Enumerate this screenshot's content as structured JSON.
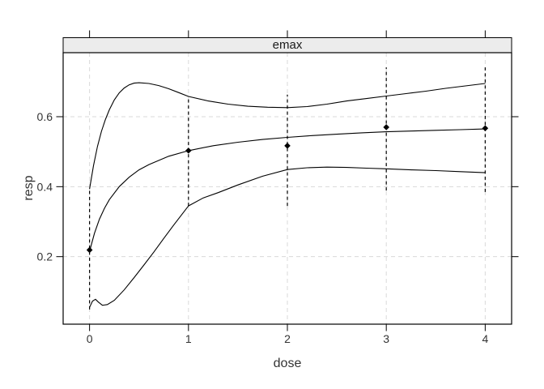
{
  "window": {
    "background": "#ffffff"
  },
  "chart_data": {
    "type": "line",
    "strip_title": "emax",
    "xlabel": "dose",
    "ylabel": "resp",
    "x_ticks": [
      0,
      1,
      2,
      3,
      4
    ],
    "x_tick_labels": [
      "0",
      "1",
      "2",
      "3",
      "4"
    ],
    "y_ticks": [
      0.2,
      0.4,
      0.6
    ],
    "y_tick_labels": [
      "0.2",
      "0.4",
      "0.6"
    ],
    "xlim": [
      -0.267,
      4.267
    ],
    "ylim": [
      0.007,
      0.783
    ],
    "grid": "dashed-gray",
    "legend": "none",
    "series": [
      {
        "name": "upper-confidence-band",
        "x": [
          0,
          0.04,
          0.08,
          0.12,
          0.16,
          0.2,
          0.25,
          0.3,
          0.35,
          0.4,
          0.45,
          0.5,
          0.6,
          0.7,
          0.8,
          0.9,
          1,
          1.2,
          1.4,
          1.6,
          1.8,
          2,
          2.2,
          2.4,
          2.6,
          2.8,
          3,
          3.2,
          3.4,
          3.6,
          3.8,
          4
        ],
        "y": [
          0.393,
          0.46,
          0.515,
          0.558,
          0.592,
          0.62,
          0.648,
          0.668,
          0.682,
          0.691,
          0.696,
          0.697,
          0.695,
          0.689,
          0.68,
          0.669,
          0.658,
          0.645,
          0.636,
          0.63,
          0.627,
          0.626,
          0.629,
          0.636,
          0.645,
          0.652,
          0.659,
          0.666,
          0.673,
          0.681,
          0.688,
          0.695
        ]
      },
      {
        "name": "fitted-emax-curve",
        "x": [
          0,
          0.05,
          0.1,
          0.15,
          0.2,
          0.3,
          0.4,
          0.5,
          0.6,
          0.8,
          1,
          1.25,
          1.5,
          1.75,
          2,
          2.25,
          2.5,
          2.75,
          3,
          3.25,
          3.5,
          3.75,
          4
        ],
        "y": [
          0.215,
          0.267,
          0.307,
          0.338,
          0.363,
          0.4,
          0.427,
          0.448,
          0.463,
          0.487,
          0.503,
          0.517,
          0.527,
          0.535,
          0.541,
          0.546,
          0.55,
          0.554,
          0.557,
          0.559,
          0.561,
          0.563,
          0.565
        ]
      },
      {
        "name": "lower-confidence-band",
        "x": [
          0,
          0.03,
          0.06,
          0.09,
          0.13,
          0.18,
          0.25,
          0.35,
          0.45,
          0.55,
          0.65,
          0.75,
          0.85,
          1,
          1.15,
          1.3,
          1.5,
          1.75,
          2,
          2.2,
          2.4,
          2.6,
          2.8,
          3,
          3.25,
          3.5,
          3.75,
          4
        ],
        "y": [
          0.055,
          0.073,
          0.078,
          0.07,
          0.061,
          0.063,
          0.075,
          0.105,
          0.14,
          0.176,
          0.213,
          0.252,
          0.29,
          0.345,
          0.368,
          0.383,
          0.405,
          0.43,
          0.449,
          0.454,
          0.456,
          0.455,
          0.453,
          0.451,
          0.448,
          0.446,
          0.443,
          0.44
        ]
      }
    ],
    "points": {
      "marker": "filled-diamond",
      "x": [
        0,
        1,
        2,
        3,
        4
      ],
      "y": [
        0.219,
        0.503,
        0.517,
        0.57,
        0.567
      ]
    },
    "intervals": {
      "style": "dashed-vertical",
      "x": [
        0,
        1,
        2,
        3,
        4
      ],
      "lo": [
        0.049,
        0.345,
        0.345,
        0.389,
        0.385
      ],
      "hi": [
        0.393,
        0.659,
        0.663,
        0.741,
        0.741
      ]
    },
    "colors": {
      "curve": "#000000",
      "point": "#000000",
      "interval": "#000000",
      "grid": "#d9d9d9",
      "strip_fill": "#ececec",
      "border": "#000000",
      "text": "#333333"
    }
  }
}
